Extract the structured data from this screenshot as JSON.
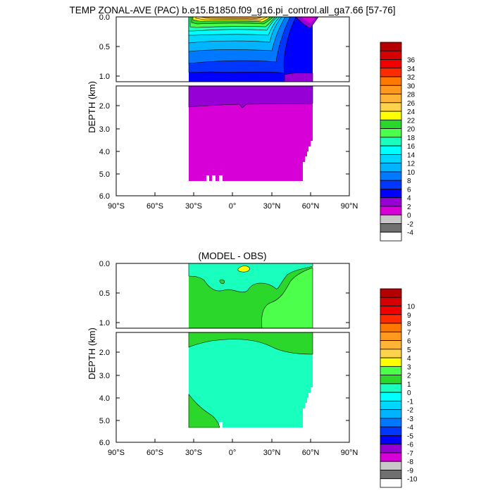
{
  "chart_data": [
    {
      "type": "contour",
      "title": "TEMP ZONAL-AVE (PAC) b.e15.B1850.f09_g16.pi_control.all_ga7.66 [57-76]",
      "ylabel": "DEPTH (km)",
      "xlabel": "",
      "x_ticks": [
        "90°S",
        "60°S",
        "30°S",
        "0°",
        "30°N",
        "60°N",
        "90°N"
      ],
      "y_ticks_upper": [
        "0.0",
        "0.5",
        "1.0"
      ],
      "y_ticks_lower": [
        "2.0",
        "3.0",
        "4.0",
        "5.0",
        "6.0"
      ],
      "xlim": [
        -90,
        90
      ],
      "ylim_km": [
        6.0,
        0.0
      ],
      "colorbar": {
        "labels": [
          "36",
          "34",
          "32",
          "30",
          "28",
          "26",
          "24",
          "22",
          "20",
          "18",
          "16",
          "14",
          "12",
          "10",
          "8",
          "6",
          "4",
          "2",
          "0",
          "-2",
          "-4"
        ],
        "colors": [
          "#b40000",
          "#d70000",
          "#f00000",
          "#ff2b00",
          "#ff7800",
          "#ff9a1e",
          "#ffb437",
          "#ffd24b",
          "#ffff00",
          "#2bd72b",
          "#4bff4b",
          "#19ffbe",
          "#00ffff",
          "#00d7ff",
          "#00b4ff",
          "#0078ff",
          "#0037ff",
          "#0000ff",
          "#9600d7",
          "#d700d7",
          "#c8c8c8",
          "#707070",
          "#ffffff"
        ]
      }
    },
    {
      "type": "contour",
      "title": "(MODEL - OBS)",
      "ylabel": "DEPTH (km)",
      "xlabel": "",
      "x_ticks": [
        "90°S",
        "60°S",
        "30°S",
        "0°",
        "30°N",
        "60°N",
        "90°N"
      ],
      "y_ticks_upper": [
        "0.0",
        "0.5",
        "1.0"
      ],
      "y_ticks_lower": [
        "2.0",
        "3.0",
        "4.0",
        "5.0",
        "6.0"
      ],
      "xlim": [
        -90,
        90
      ],
      "ylim_km": [
        6.0,
        0.0
      ],
      "colorbar": {
        "labels": [
          "10",
          "9",
          "8",
          "7",
          "6",
          "5",
          "4",
          "3",
          "2",
          "1",
          "0",
          "-1",
          "-2",
          "-3",
          "-4",
          "-5",
          "-6",
          "-7",
          "-8",
          "-9",
          "-10"
        ],
        "colors": [
          "#b40000",
          "#d70000",
          "#f00000",
          "#ff2b00",
          "#ff7800",
          "#ff9a1e",
          "#ffb437",
          "#ffd24b",
          "#ffff00",
          "#4bff4b",
          "#2bd72b",
          "#19ffbe",
          "#00ffff",
          "#00d7ff",
          "#00b4ff",
          "#0078ff",
          "#0037ff",
          "#0000ff",
          "#9600d7",
          "#d700d7",
          "#c8c8c8",
          "#707070",
          "#ffffff"
        ]
      }
    }
  ]
}
